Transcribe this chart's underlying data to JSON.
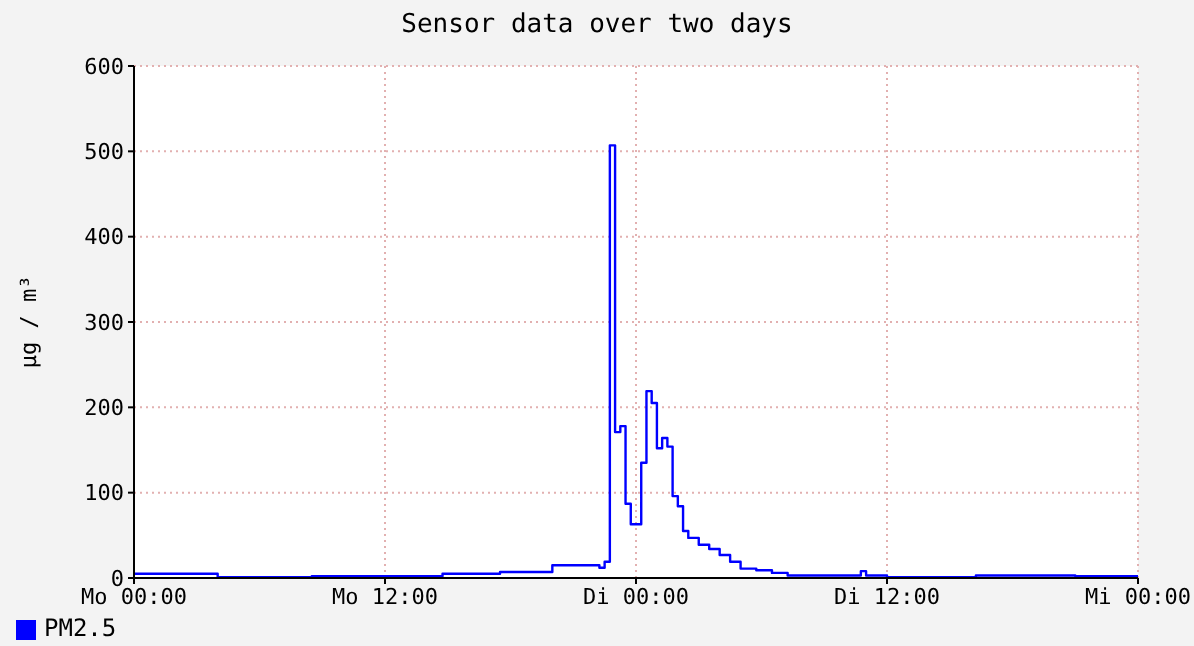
{
  "chart_data": {
    "type": "step",
    "title": "Sensor data over two days",
    "ylabel": "µg / m³",
    "categories": [
      "Mo 00:00",
      null,
      null,
      null,
      null,
      null,
      null,
      null,
      null,
      null,
      null,
      null,
      null,
      null,
      null,
      null,
      null,
      null,
      null,
      null,
      null,
      null,
      null,
      null,
      null,
      null,
      null,
      null,
      null,
      null,
      null,
      null,
      null,
      null,
      null,
      null,
      null,
      null,
      null,
      null,
      null,
      null,
      null,
      null,
      null,
      null,
      null,
      null,
      "Mo 12:00",
      null,
      null,
      null,
      null,
      null,
      null,
      null,
      null,
      null,
      null,
      null,
      null,
      null,
      null,
      null,
      null,
      null,
      null,
      null,
      null,
      null,
      null,
      null,
      null,
      null,
      null,
      null,
      null,
      null,
      null,
      null,
      null,
      null,
      null,
      null,
      null,
      null,
      null,
      null,
      null,
      null,
      null,
      null,
      null,
      null,
      null,
      null,
      "Di 00:00",
      null,
      null,
      null,
      null,
      null,
      null,
      null,
      null,
      null,
      null,
      null,
      null,
      null,
      null,
      null,
      null,
      null,
      null,
      null,
      null,
      null,
      null,
      null,
      null,
      null,
      null,
      null,
      null,
      null,
      null,
      null,
      null,
      null,
      null,
      null,
      null,
      null,
      null,
      null,
      null,
      null,
      null,
      null,
      null,
      null,
      null,
      null,
      "Di 12:00",
      null,
      null,
      null,
      null,
      null,
      null,
      null,
      null,
      null,
      null,
      null,
      null,
      null,
      null,
      null,
      null,
      null,
      null,
      null,
      null,
      null,
      null,
      null,
      null,
      null,
      null,
      null,
      null,
      null,
      null,
      null,
      null,
      null,
      null,
      null,
      null,
      null,
      null,
      null,
      null,
      null,
      null,
      null,
      null,
      null,
      null,
      null,
      "Mi 00:00"
    ],
    "ylim": [
      0,
      600
    ],
    "yticks": [
      0,
      100,
      200,
      300,
      400,
      500,
      600
    ],
    "grid": true,
    "legend": "bottom left",
    "marker": "none",
    "line_style": "solid",
    "series": [
      {
        "name": "PM2.5",
        "color": "#0000ff",
        "values": [
          5,
          5,
          5,
          5,
          5,
          5,
          5,
          5,
          5,
          5,
          5,
          5,
          5,
          5,
          5,
          5,
          1,
          1,
          1,
          1,
          1,
          1,
          1,
          1,
          1,
          1,
          1,
          1,
          1,
          1,
          1,
          1,
          1,
          1,
          2,
          2,
          2,
          2,
          2,
          2,
          2,
          2,
          2,
          2,
          2,
          2,
          2,
          2,
          2,
          2,
          2,
          2,
          2,
          2,
          2,
          2,
          2,
          2,
          2,
          5,
          5,
          5,
          5,
          5,
          5,
          5,
          5,
          5,
          5,
          5,
          7,
          7,
          7,
          7,
          7,
          7,
          7,
          7,
          7,
          7,
          15,
          15,
          15,
          15,
          15,
          15,
          15,
          15,
          15,
          12,
          19,
          507,
          171,
          178,
          87,
          63,
          63,
          135,
          219,
          205,
          152,
          164,
          154,
          96,
          84,
          55,
          47,
          47,
          39,
          39,
          34,
          34,
          27,
          27,
          19,
          19,
          11,
          11,
          11,
          9,
          9,
          9,
          6,
          6,
          6,
          3,
          3,
          3,
          3,
          3,
          3,
          3,
          3,
          3,
          3,
          3,
          3,
          3,
          3,
          8,
          3,
          3,
          3,
          3,
          1,
          1,
          1,
          1,
          1,
          1,
          1,
          1,
          1,
          1,
          1,
          1,
          1,
          1,
          1,
          1,
          1,
          3,
          3,
          3,
          3,
          3,
          3,
          3,
          3,
          3,
          3,
          3,
          3,
          3,
          3,
          3,
          3,
          3,
          3,
          3,
          2,
          2,
          2,
          2,
          2,
          2,
          2,
          2,
          2,
          2,
          2,
          2,
          2
        ]
      }
    ]
  }
}
